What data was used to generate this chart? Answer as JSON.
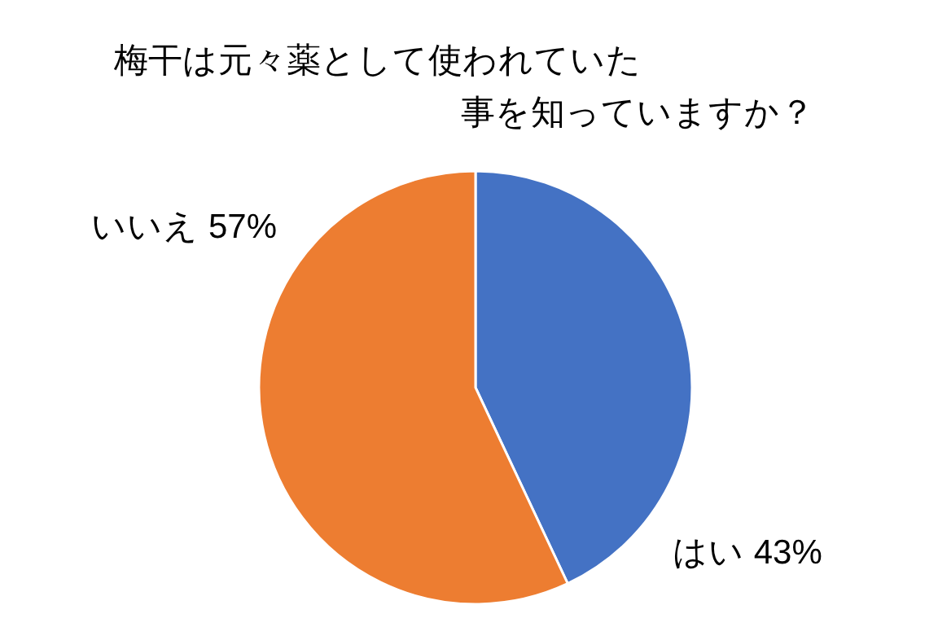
{
  "chart_data": {
    "type": "pie",
    "title": "梅干は元々薬として使われていた事を知っていますか？",
    "categories": [
      "はい",
      "いいえ"
    ],
    "values": [
      43,
      57
    ],
    "value_labels": [
      "43%",
      "57%"
    ],
    "colors": [
      "#4472c4",
      "#ed7d31"
    ]
  }
}
